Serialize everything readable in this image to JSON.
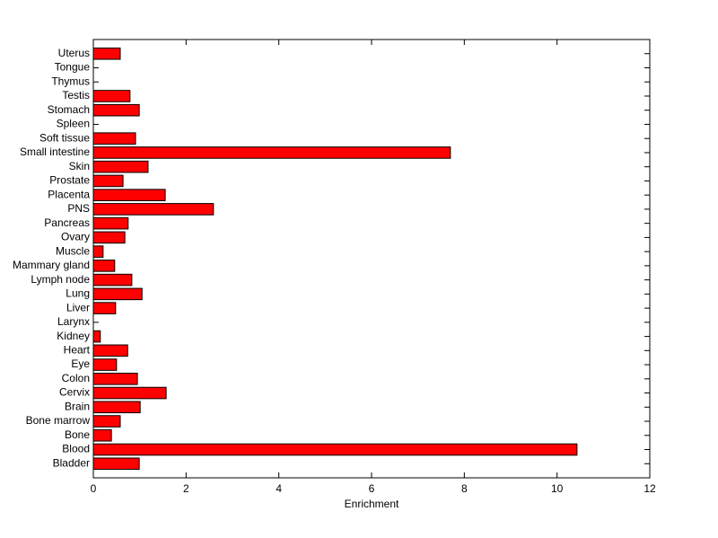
{
  "chart_data": {
    "type": "barh",
    "x_label": "Enrichment",
    "categories": [
      "Bladder",
      "Blood",
      "Bone",
      "Bone marrow",
      "Brain",
      "Cervix",
      "Colon",
      "Eye",
      "Heart",
      "Kidney",
      "Larynx",
      "Liver",
      "Lung",
      "Lymph node",
      "Mammary gland",
      "Muscle",
      "Ovary",
      "Pancreas",
      "PNS",
      "Placenta",
      "Prostate",
      "Skin",
      "Small intestine",
      "Soft tissue",
      "Spleen",
      "Stomach",
      "Testis",
      "Thymus",
      "Tongue",
      "Uterus"
    ],
    "values": [
      0.99,
      10.43,
      0.39,
      0.58,
      1.01,
      1.57,
      0.95,
      0.5,
      0.74,
      0.15,
      0,
      0.48,
      1.05,
      0.83,
      0.46,
      0.21,
      0.68,
      0.75,
      2.59,
      1.55,
      0.64,
      1.18,
      7.7,
      0.91,
      0,
      0.99,
      0.79,
      0,
      0,
      0.58
    ],
    "color": "#ff0000",
    "xlim": [
      0,
      12
    ],
    "xticks": [
      0,
      2,
      4,
      6,
      8,
      10,
      12
    ],
    "grid": false
  }
}
